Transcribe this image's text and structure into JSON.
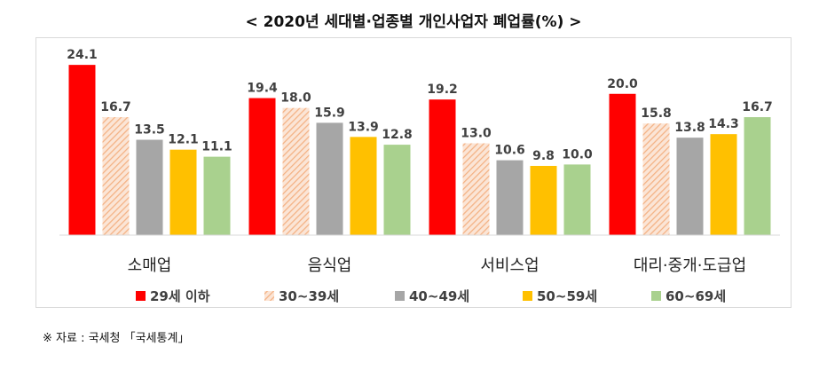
{
  "title": "< 2020년 세대별·업종별 개인사업자 폐업률(%) >",
  "source": "※ 자료 : 국세청 「국세통계」",
  "colors": {
    "red": "#ff0000",
    "hatch": "#f4b183",
    "gray": "#a6a6a6",
    "yellow": "#ffc000",
    "green": "#a9d18e"
  },
  "chart_data": {
    "type": "bar",
    "title": "< 2020년 세대별·업종별 개인사업자 폐업률(%) >",
    "categories": [
      "소매업",
      "음식업",
      "서비스업",
      "대리·중개·도급업"
    ],
    "ylim": [
      0,
      26
    ],
    "grid": false,
    "legend_position": "bottom",
    "series": [
      {
        "name": "29세 이하",
        "color": "#ff0000",
        "pattern": "solid",
        "values": [
          24.1,
          19.4,
          19.2,
          20.0
        ]
      },
      {
        "name": "30~39세",
        "color": "#f4b183",
        "pattern": "hatched",
        "values": [
          16.7,
          18.0,
          13.0,
          15.8
        ]
      },
      {
        "name": "40~49세",
        "color": "#a6a6a6",
        "pattern": "solid",
        "values": [
          13.5,
          15.9,
          10.6,
          13.8
        ]
      },
      {
        "name": "50~59세",
        "color": "#ffc000",
        "pattern": "solid",
        "values": [
          12.1,
          13.9,
          9.8,
          14.3
        ]
      },
      {
        "name": "60~69세",
        "color": "#a9d18e",
        "pattern": "solid",
        "values": [
          11.1,
          12.8,
          10.0,
          16.7
        ]
      }
    ]
  }
}
